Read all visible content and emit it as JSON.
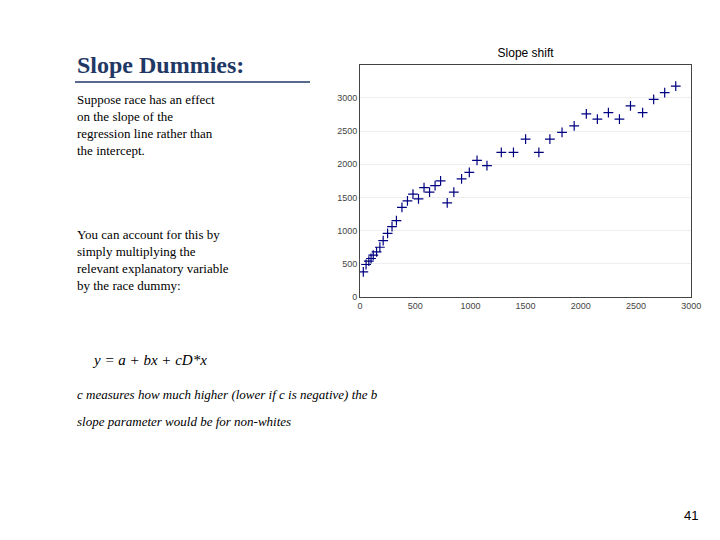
{
  "chart_data": {
    "type": "scatter",
    "title": "Slope shift",
    "x": [
      30,
      55,
      80,
      100,
      120,
      150,
      180,
      210,
      250,
      290,
      330,
      380,
      430,
      480,
      530,
      580,
      630,
      680,
      730,
      790,
      850,
      920,
      990,
      1060,
      1150,
      1280,
      1390,
      1500,
      1620,
      1720,
      1830,
      1940,
      2050,
      2150,
      2250,
      2350,
      2450,
      2560,
      2660,
      2760,
      2860
    ],
    "values": [
      380,
      490,
      540,
      580,
      630,
      680,
      750,
      850,
      960,
      1060,
      1150,
      1350,
      1450,
      1550,
      1480,
      1650,
      1580,
      1680,
      1750,
      1420,
      1580,
      1780,
      1880,
      2060,
      1980,
      2180,
      2180,
      2380,
      2180,
      2380,
      2480,
      2580,
      2760,
      2680,
      2780,
      2680,
      2880,
      2780,
      2980,
      3080,
      3180
    ],
    "color": "#000080",
    "marker": "+",
    "xlim": [
      0,
      3000
    ],
    "ylim": [
      0,
      3500
    ],
    "xticks": [
      0,
      500,
      1000,
      1500,
      2000,
      2500,
      3000
    ],
    "yticks": [
      0,
      500,
      1000,
      1500,
      2000,
      2500,
      3000
    ],
    "grid": true,
    "annotations": [
      "Slope Dummies:",
      "Suppose race has an effect\non the slope of the\nregression line rather than\nthe intercept.",
      "You can account for this by\nsimply multiplying the\nrelevant explanatory variable\nby the race dummy:",
      "y = a + bx + cD*x",
      "c measures how much higher (lower if c is negative) the b",
      "slope parameter would be for non-whites",
      "41"
    ]
  }
}
